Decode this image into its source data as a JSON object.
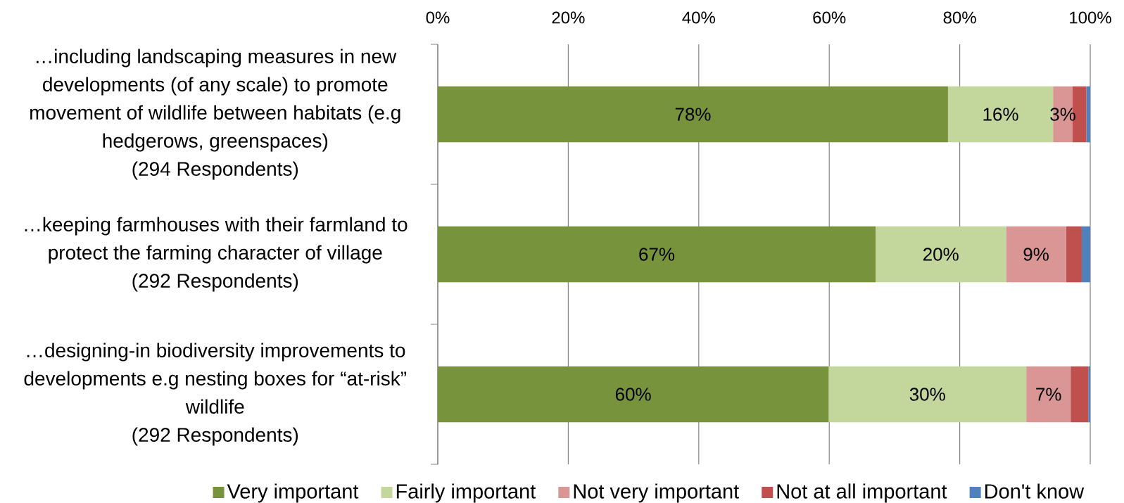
{
  "chart_data": {
    "type": "bar",
    "orientation": "horizontal",
    "stacked": true,
    "categories": [
      "…including landscaping measures in new developments (of any scale) to promote movement of wildlife between habitats (e.g hedgerows, greenspaces)\n(294 Respondents)",
      "…keeping farmhouses with their farmland to protect the farming character of village\n(292 Respondents)",
      "…designing-in biodiversity improvements to developments e.g nesting boxes for “at-risk” wildlife\n(292 Respondents)"
    ],
    "series": [
      {
        "name": "Very important",
        "color": "#77933c",
        "values": [
          78.2,
          67.1,
          59.9
        ],
        "value_labels": [
          "78%",
          "67%",
          "60%"
        ]
      },
      {
        "name": "Fairly important",
        "color": "#c3d69b",
        "values": [
          16.1,
          20.0,
          30.3
        ],
        "value_labels": [
          "16%",
          "20%",
          "30%"
        ]
      },
      {
        "name": "Not very important",
        "color": "#d99694",
        "values": [
          3.0,
          9.2,
          6.8
        ],
        "value_labels": [
          "3%",
          "9%",
          "7%"
        ]
      },
      {
        "name": "Not at all important",
        "color": "#c0504d",
        "values": [
          2.1,
          2.4,
          2.7
        ]
      },
      {
        "name": "Don't know",
        "color": "#4f81bd",
        "values": [
          0.6,
          1.3,
          0.3
        ]
      }
    ],
    "xlim": [
      0,
      100
    ],
    "xticks": [
      {
        "value": 0,
        "label": "0%"
      },
      {
        "value": 20,
        "label": "20%"
      },
      {
        "value": 40,
        "label": "40%"
      },
      {
        "value": 60,
        "label": "60%"
      },
      {
        "value": 80,
        "label": "80%"
      },
      {
        "value": 100,
        "label": "100%"
      }
    ],
    "grid": "x",
    "legend": "bottom"
  }
}
